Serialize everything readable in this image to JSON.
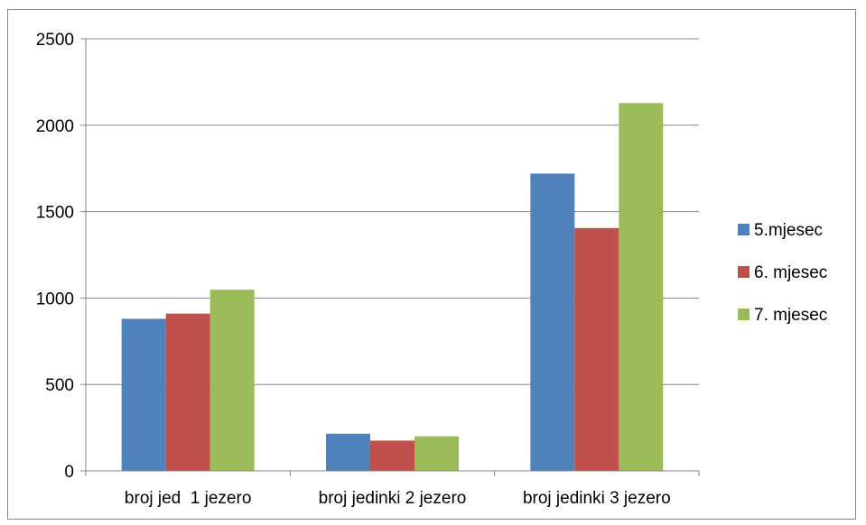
{
  "chart_data": {
    "type": "bar",
    "categories": [
      "broj jed  1 jezero",
      "broj jedinki 2 jezero",
      "broj jedinki 3 jezero"
    ],
    "series": [
      {
        "name": "5.mjesec",
        "values": [
          880,
          215,
          1720
        ],
        "color": "#4F81BD"
      },
      {
        "name": "6. mjesec",
        "values": [
          910,
          175,
          1405
        ],
        "color": "#C0504D"
      },
      {
        "name": "7. mjesec",
        "values": [
          1048,
          200,
          2128
        ],
        "color": "#9BBB59"
      }
    ],
    "yticks": [
      "0",
      "500",
      "1000",
      "1500",
      "2000",
      "2500"
    ],
    "ylim": [
      0,
      2500
    ],
    "grid": true,
    "legend_position": "right"
  }
}
